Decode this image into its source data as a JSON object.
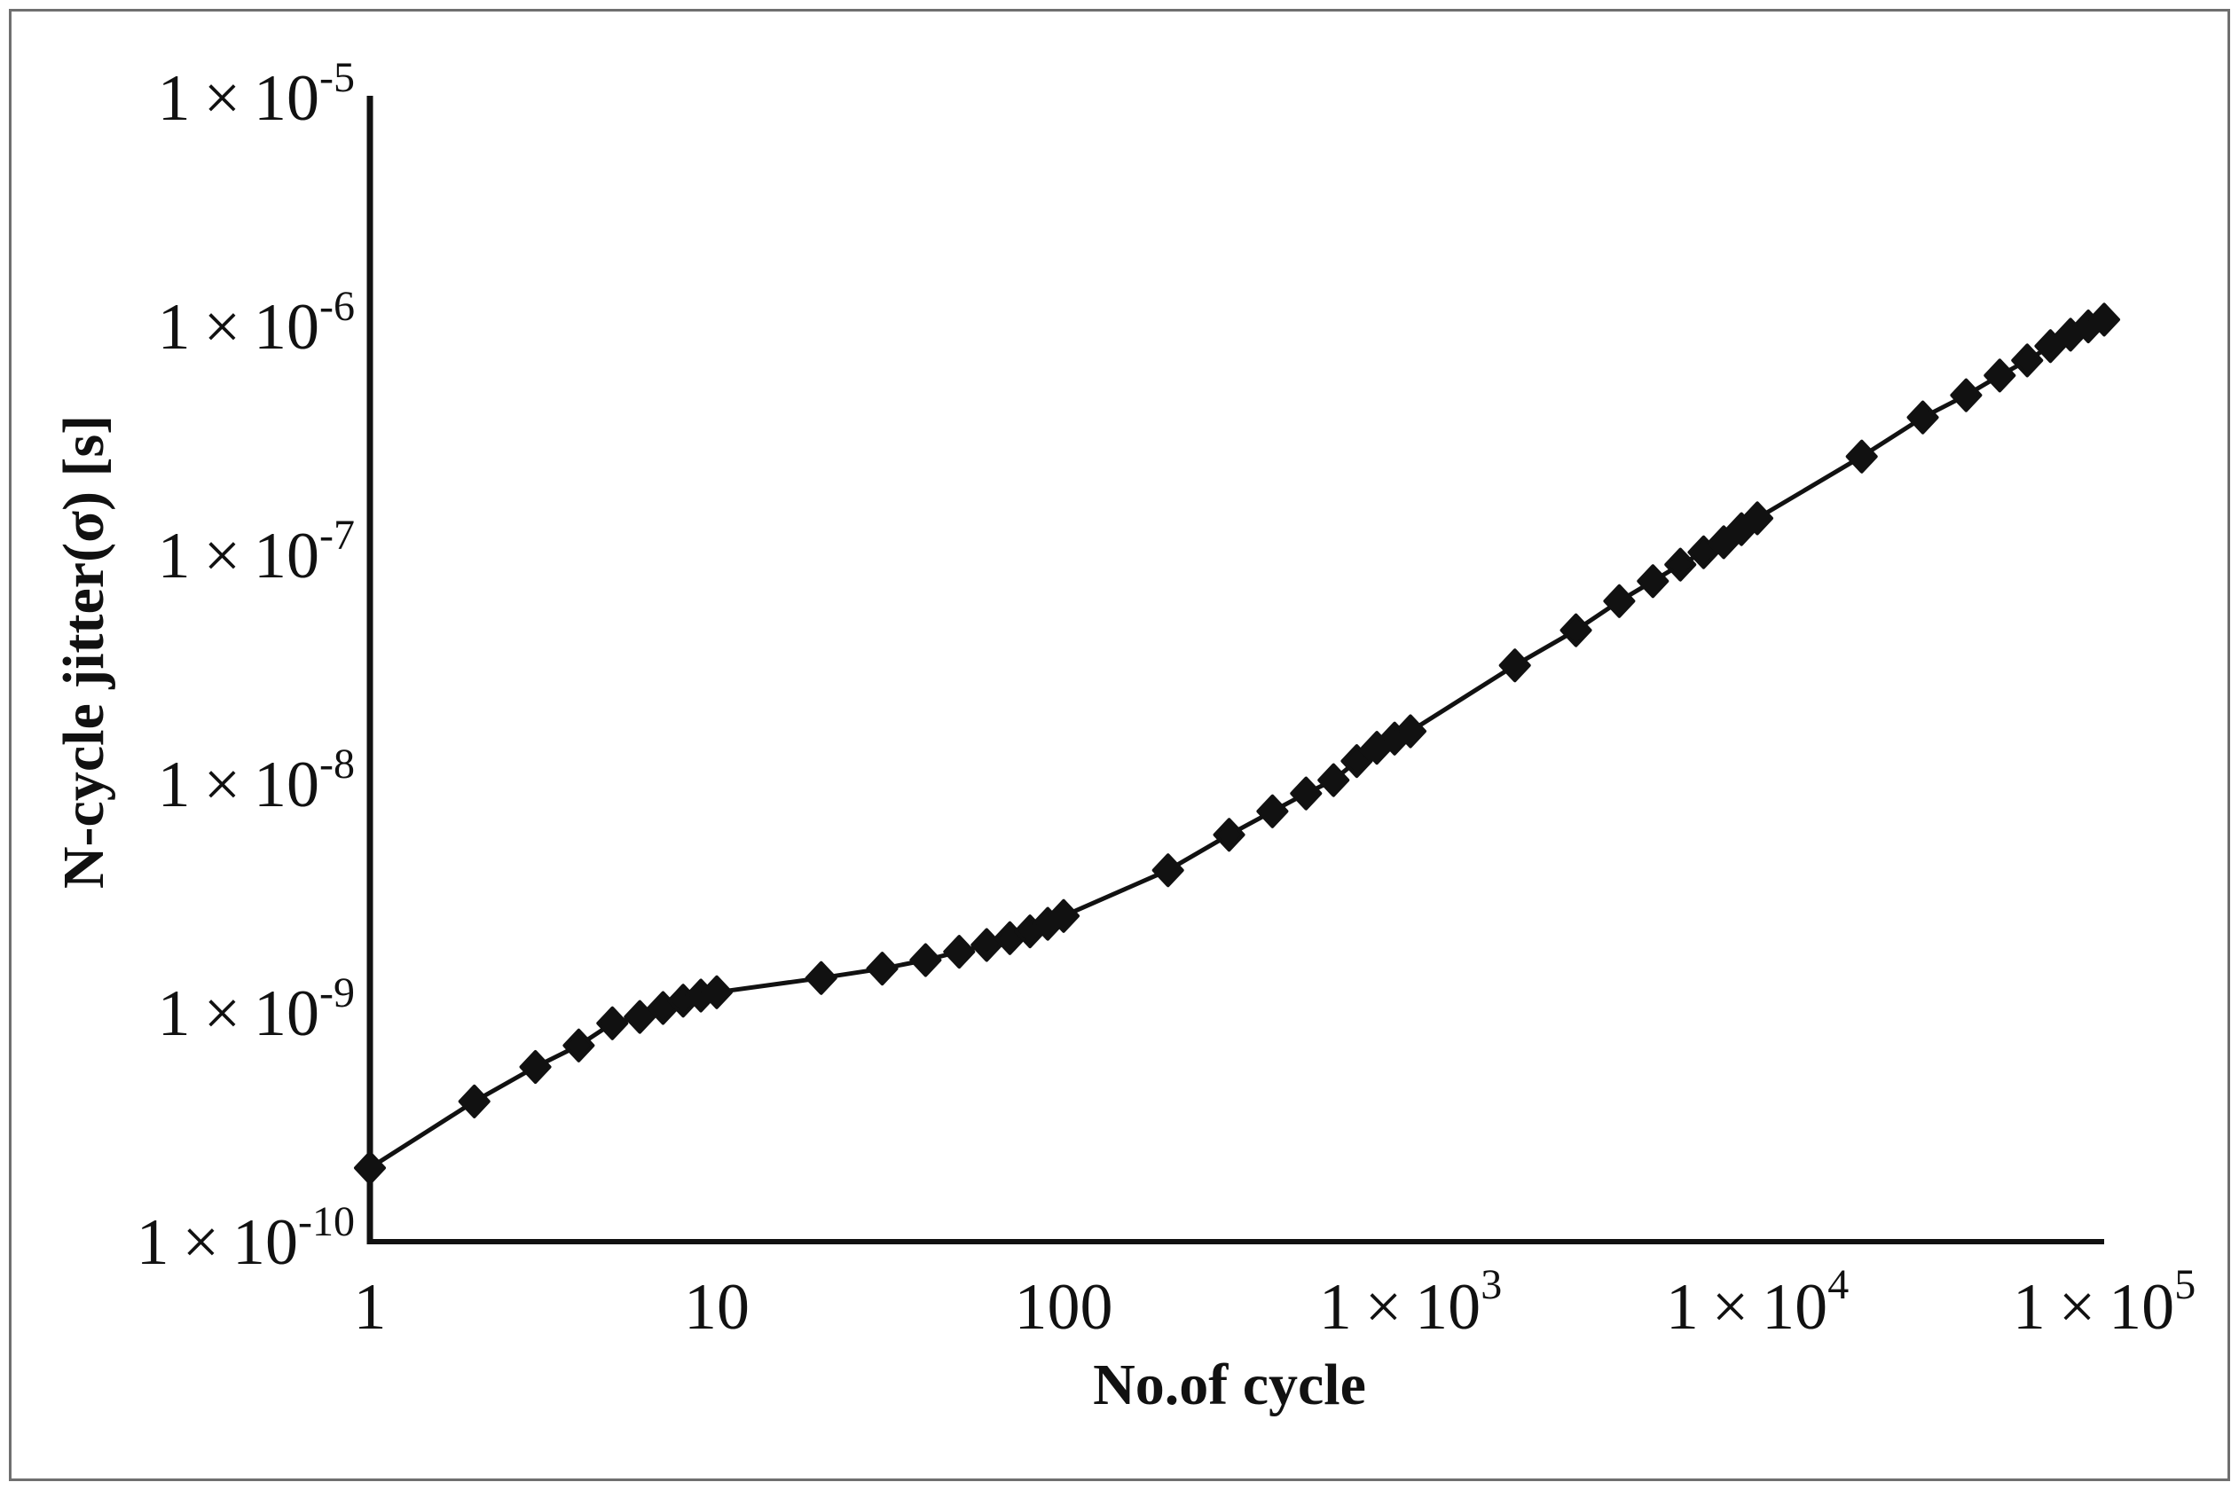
{
  "figure": {
    "background": "#ffffff",
    "border_color": "#6f6f6f",
    "line_color": "#111111",
    "marker_color": "#111111"
  },
  "chart_data": {
    "type": "line",
    "title": "",
    "xlabel": "No.of cycle",
    "ylabel": "N-cycle jitter(σ) [s]",
    "x_scale": "log",
    "y_scale": "log",
    "xlim": [
      1,
      100000
    ],
    "ylim": [
      1e-10,
      1e-05
    ],
    "grid": false,
    "legend_position": "none",
    "marker": "diamond",
    "x_tick_labels": [
      {
        "text": "1",
        "sup": "",
        "value": 1
      },
      {
        "text": "10",
        "sup": "",
        "value": 10
      },
      {
        "text": "100",
        "sup": "",
        "value": 100
      },
      {
        "text": "1 × 10",
        "sup": "3",
        "value": 1000
      },
      {
        "text": "1 × 10",
        "sup": "4",
        "value": 10000
      },
      {
        "text": "1 × 10",
        "sup": "5",
        "value": 100000
      }
    ],
    "y_tick_labels": [
      {
        "text": "1 × 10",
        "sup": "-5",
        "value": 1e-05
      },
      {
        "text": "1 × 10",
        "sup": "-6",
        "value": 1e-06
      },
      {
        "text": "1 × 10",
        "sup": "-7",
        "value": 1e-07
      },
      {
        "text": "1 × 10",
        "sup": "-8",
        "value": 1e-08
      },
      {
        "text": "1 × 10",
        "sup": "-9",
        "value": 1e-09
      },
      {
        "text": "1 × 10",
        "sup": "-10",
        "value": 1e-10
      }
    ],
    "series": [
      {
        "name": "N-cycle jitter",
        "x": [
          1,
          2,
          3,
          4,
          5,
          6,
          7,
          8,
          9,
          10,
          20,
          30,
          40,
          50,
          60,
          70,
          80,
          90,
          100,
          200,
          300,
          400,
          500,
          600,
          700,
          800,
          900,
          1000,
          2000,
          3000,
          4000,
          5000,
          6000,
          7000,
          8000,
          9000,
          10000,
          20000,
          30000,
          40000,
          50000,
          60000,
          70000,
          80000,
          90000,
          100000
        ],
        "y": [
          2.1e-10,
          4.1e-10,
          5.8e-10,
          7.2e-10,
          9e-10,
          9.6e-10,
          1.05e-09,
          1.13e-09,
          1.19e-09,
          1.23e-09,
          1.42e-09,
          1.56e-09,
          1.7e-09,
          1.85e-09,
          1.98e-09,
          2.12e-09,
          2.27e-09,
          2.45e-09,
          2.65e-09,
          4.2e-09,
          6e-09,
          7.6e-09,
          9.1e-09,
          1.04e-08,
          1.26e-08,
          1.44e-08,
          1.58e-08,
          1.7e-08,
          3.3e-08,
          4.7e-08,
          6.3e-08,
          7.7e-08,
          9.1e-08,
          1.03e-07,
          1.14e-07,
          1.3e-07,
          1.45e-07,
          2.7e-07,
          4e-07,
          5e-07,
          6.1e-07,
          7.1e-07,
          8.2e-07,
          9.2e-07,
          1e-06,
          1.07e-06
        ]
      }
    ]
  }
}
